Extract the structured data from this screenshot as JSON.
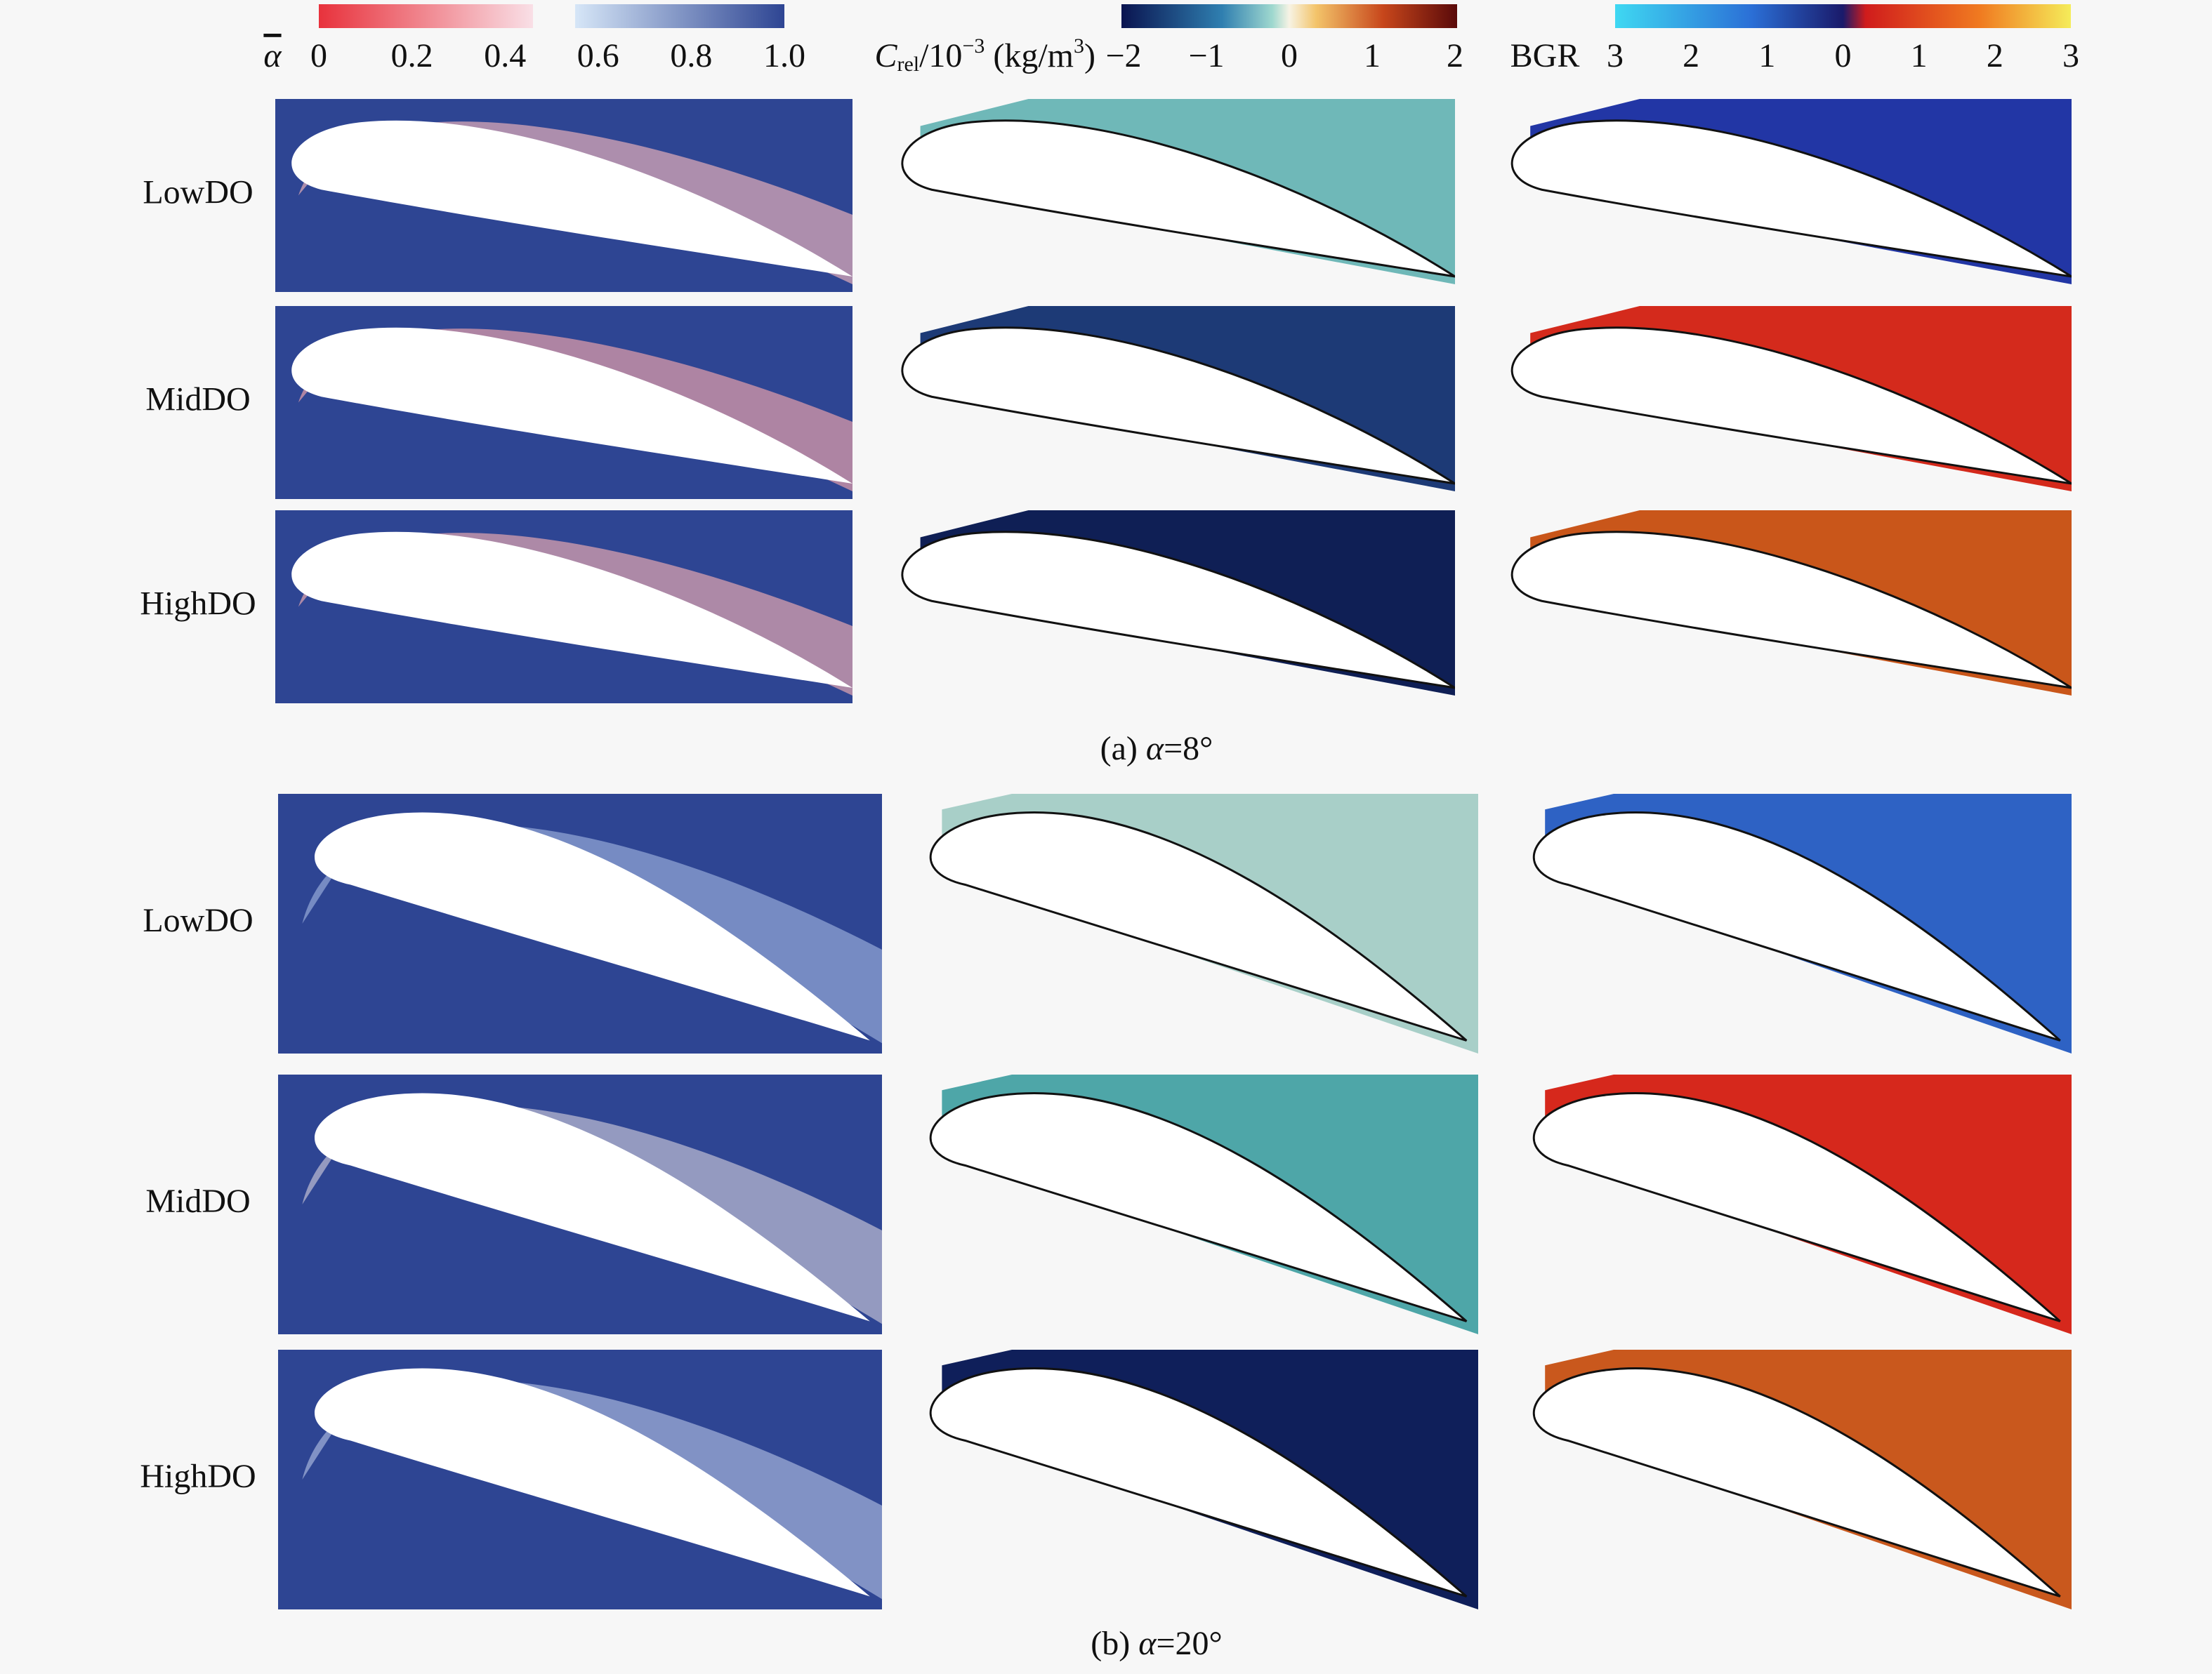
{
  "colorbars": [
    {
      "label": "α",
      "ticks": [
        "0",
        "0.2",
        "0.4",
        "0.6",
        "0.8",
        "1.0"
      ]
    },
    {
      "label_parts": [
        "C",
        "rel",
        "/10",
        "−3",
        " (kg/m",
        "3",
        ")"
      ],
      "ticks": [
        "−2",
        "−1",
        "0",
        "1",
        "2"
      ]
    },
    {
      "label": "BGR",
      "ticks": [
        "3",
        "2",
        "1",
        "0",
        "1",
        "2",
        "3"
      ]
    }
  ],
  "panels": [
    {
      "caption_parts": [
        "(a) ",
        "α",
        "=8°"
      ],
      "rows": [
        "LowDO",
        "MidDO",
        "HighDO"
      ]
    },
    {
      "caption_parts": [
        "(b) ",
        "α",
        "=20°"
      ],
      "rows": [
        "LowDO",
        "MidDO",
        "HighDO"
      ]
    }
  ]
}
